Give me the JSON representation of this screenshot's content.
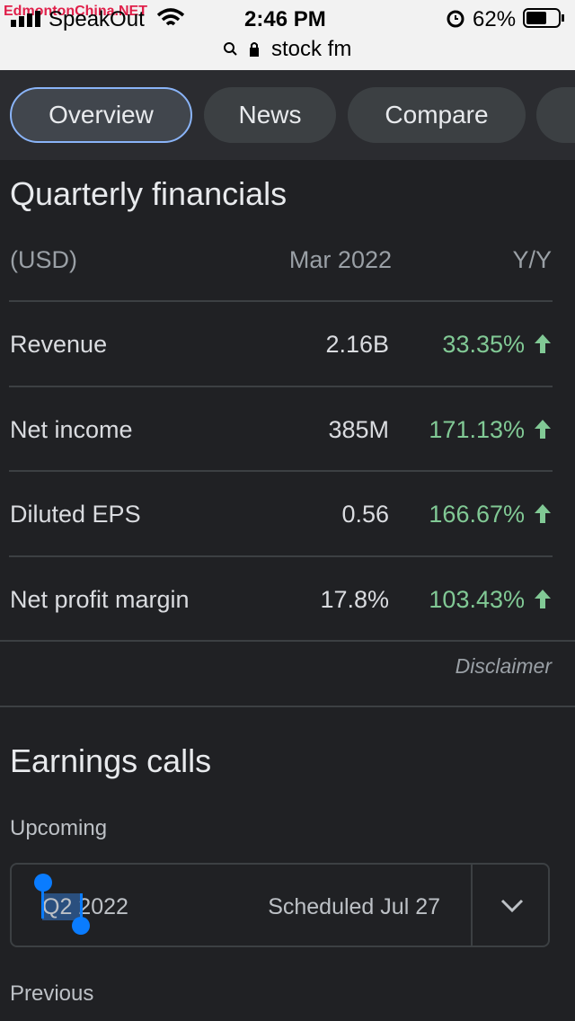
{
  "watermark": "EdmontonChina.NET",
  "status_bar": {
    "carrier": "SpeakOut",
    "time": "2:46 PM",
    "battery": "62%"
  },
  "address_bar": {
    "url": "stock fm"
  },
  "tabs": [
    "Overview",
    "News",
    "Compare"
  ],
  "financials": {
    "title": "Quarterly financials",
    "header": [
      "(USD)",
      "Mar 2022",
      "Y/Y"
    ],
    "rows": [
      [
        "Revenue",
        "2.16B",
        "33.35%"
      ],
      [
        "Net income",
        "385M",
        "171.13%"
      ],
      [
        "Diluted EPS",
        "0.56",
        "166.67%"
      ],
      [
        "Net profit margin",
        "17.8%",
        "103.43%"
      ]
    ],
    "disclaimer": "Disclaimer"
  },
  "earnings": {
    "title": "Earnings calls",
    "upcoming_label": "Upcoming",
    "quarter": "Q2 2022",
    "scheduled": "Scheduled Jul 27",
    "previous_label": "Previous"
  }
}
